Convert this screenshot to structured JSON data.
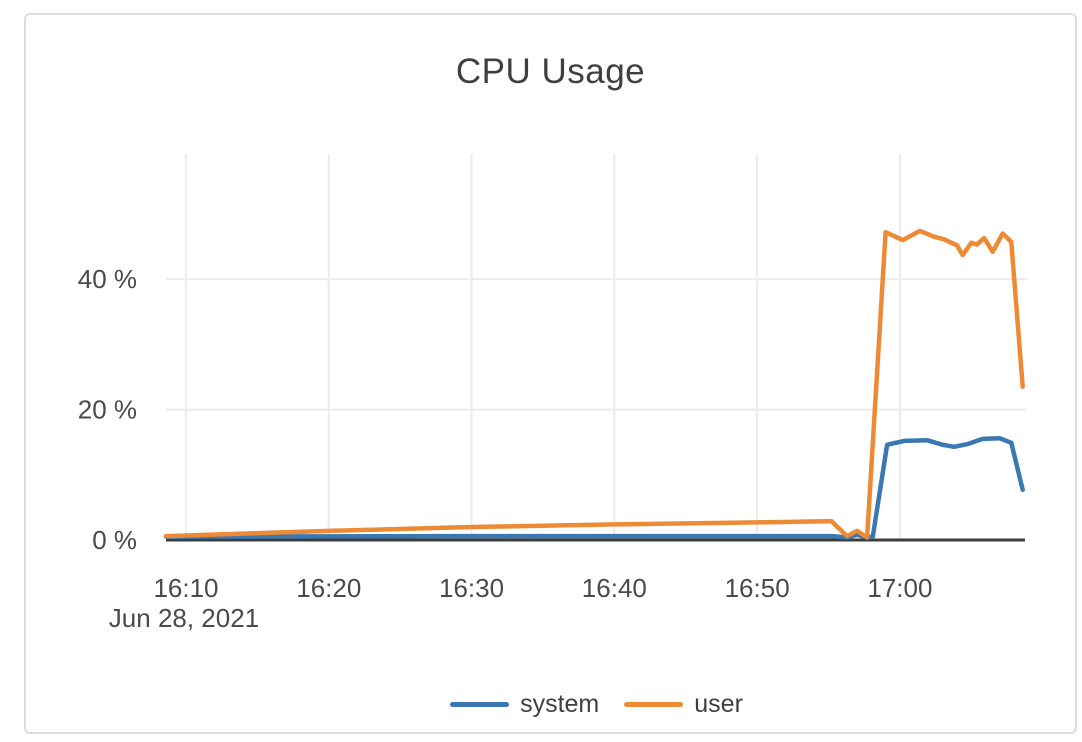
{
  "chart_data": {
    "type": "line",
    "title": "CPU Usage",
    "legend_position": "bottom",
    "grid": "on",
    "colors": {
      "grid_line": "#ececec",
      "axis_line": "#3d3d3d",
      "tick_text": "#4a4a4a",
      "title_text": "#3f3f3f",
      "card_border": "#dcdcdc",
      "background": "#ffffff"
    },
    "x_axis": {
      "date_label": "Jun 28, 2021",
      "unit": "time (HH:MM)",
      "range_minutes_after_1600": [
        8.6,
        68.9
      ],
      "ticks": [
        {
          "t": 10,
          "label": "16:10"
        },
        {
          "t": 20,
          "label": "16:20"
        },
        {
          "t": 30,
          "label": "16:30"
        },
        {
          "t": 40,
          "label": "16:40"
        },
        {
          "t": 50,
          "label": "16:50"
        },
        {
          "t": 60,
          "label": "17:00"
        }
      ]
    },
    "y_axis": {
      "unit": "%",
      "range": [
        0,
        59.2
      ],
      "ticks": [
        {
          "v": 0,
          "label": "0 %"
        },
        {
          "v": 20,
          "label": "20 %"
        },
        {
          "v": 40,
          "label": "40 %"
        }
      ]
    },
    "series": [
      {
        "name": "system",
        "color": "#3a78b1",
        "points": [
          [
            8.6,
            0.5
          ],
          [
            30,
            0.6
          ],
          [
            50,
            0.6
          ],
          [
            55.2,
            0.6
          ],
          [
            56.3,
            0.4
          ],
          [
            57.0,
            0.8
          ],
          [
            57.7,
            0.4
          ],
          [
            58.1,
            0.5
          ],
          [
            59.1,
            14.6
          ],
          [
            60.3,
            15.2
          ],
          [
            61.9,
            15.3
          ],
          [
            63.0,
            14.6
          ],
          [
            63.8,
            14.3
          ],
          [
            64.7,
            14.7
          ],
          [
            65.8,
            15.5
          ],
          [
            67.0,
            15.6
          ],
          [
            67.8,
            14.9
          ],
          [
            68.6,
            7.7
          ]
        ]
      },
      {
        "name": "user",
        "color": "#ec8a35",
        "points": [
          [
            8.6,
            0.6
          ],
          [
            20,
            1.4
          ],
          [
            30,
            2.0
          ],
          [
            40,
            2.4
          ],
          [
            50,
            2.7
          ],
          [
            55.2,
            2.9
          ],
          [
            56.3,
            0.6
          ],
          [
            57.0,
            1.4
          ],
          [
            57.7,
            0.4
          ],
          [
            59.0,
            47.2
          ],
          [
            60.2,
            46.0
          ],
          [
            60.8,
            46.7
          ],
          [
            61.4,
            47.4
          ],
          [
            62.3,
            46.6
          ],
          [
            63.1,
            46.1
          ],
          [
            64.0,
            45.2
          ],
          [
            64.4,
            43.7
          ],
          [
            65.0,
            45.6
          ],
          [
            65.4,
            45.3
          ],
          [
            65.9,
            46.3
          ],
          [
            66.5,
            44.2
          ],
          [
            67.2,
            47.0
          ],
          [
            67.8,
            45.7
          ],
          [
            68.6,
            23.5
          ]
        ]
      }
    ]
  }
}
